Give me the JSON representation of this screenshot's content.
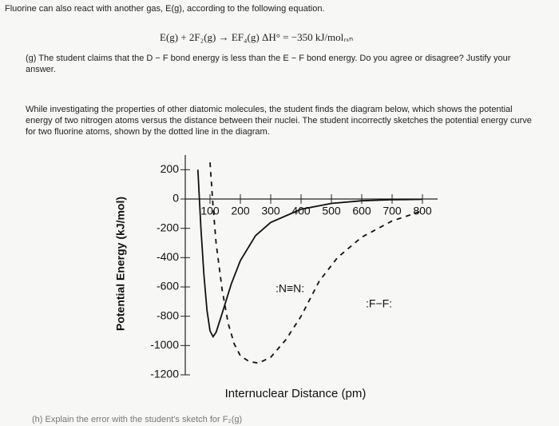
{
  "intro": "Fluorine can also react with another gas, E(g), according to the following equation.",
  "equation": "E(g) + 2F₂(g) → EF₄(g)   ΔH° = −350 kJ/molᵣₓₙ",
  "question_g": "(g) The student claims that the D − F bond energy is less than the E − F bond energy. Do you agree or disagree? Justify your answer.",
  "paragraph": "While investigating the properties of other diatomic molecules, the student finds the diagram below, which shows the potential energy of two nitrogen atoms versus the distance between their nuclei. The student incorrectly sketches the potential energy curve for two fluorine atoms, shown by the dotted line in the diagram.",
  "question_h": "(h) Explain the error with the student's sketch for F₂(g)",
  "chart_data": {
    "type": "line",
    "x_label": "Internuclear Distance (pm)",
    "y_label": "Potential Energy (kJ/mol)",
    "xlim": [
      0,
      850
    ],
    "ylim": [
      -1200,
      300
    ],
    "xticks": [
      100,
      200,
      300,
      400,
      500,
      600,
      700,
      800
    ],
    "yticks": [
      200,
      0,
      -200,
      -400,
      -600,
      -800,
      -1000,
      -1200
    ],
    "series": [
      {
        "name": ":N≡N:",
        "color": "#111111",
        "dashed": false,
        "x": [
          60,
          70,
          80,
          90,
          100,
          110,
          120,
          140,
          170,
          200,
          250,
          300,
          400,
          500,
          600,
          700,
          800
        ],
        "values": [
          200,
          -200,
          -520,
          -760,
          -900,
          -940,
          -910,
          -780,
          -580,
          -420,
          -250,
          -160,
          -70,
          -30,
          -12,
          -5,
          -2
        ]
      },
      {
        "name": ":F−F:",
        "color": "#111111",
        "dashed": true,
        "x": [
          100,
          110,
          120,
          140,
          160,
          180,
          200,
          230,
          260,
          300,
          350,
          400,
          460,
          520,
          600,
          700,
          800
        ],
        "values": [
          250,
          -50,
          -300,
          -620,
          -850,
          -990,
          -1070,
          -1110,
          -1120,
          -1080,
          -960,
          -800,
          -560,
          -400,
          -260,
          -150,
          -80
        ]
      }
    ]
  }
}
